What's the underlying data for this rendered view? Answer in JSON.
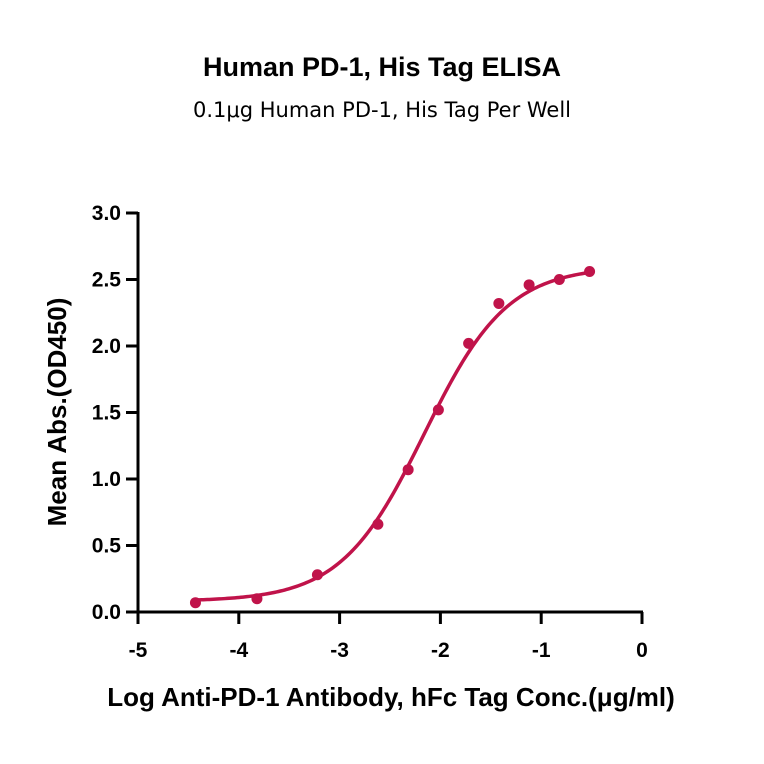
{
  "chart_data": {
    "type": "scatter",
    "title": "Human PD-1, His Tag ELISA",
    "subtitle": "0.1μg Human PD-1, His Tag Per Well",
    "xlabel": "Log Anti-PD-1 Antibody, hFc Tag Conc.(μg/ml)",
    "ylabel": "Mean Abs.(OD450)",
    "xlim": [
      -5,
      0
    ],
    "ylim": [
      0,
      3
    ],
    "x_ticks": [
      "-5",
      "-4",
      "-3",
      "-2",
      "-1",
      "0"
    ],
    "y_ticks": [
      "0.0",
      "0.5",
      "1.0",
      "1.5",
      "2.0",
      "2.5",
      "3.0"
    ],
    "grid": false,
    "color": "#c0134a",
    "series": [
      {
        "x": [
          -4.43,
          -3.82,
          -3.22,
          -2.62,
          -2.32,
          -2.02,
          -1.72,
          -1.42,
          -1.12,
          -0.82,
          -0.52
        ],
        "y": [
          0.07,
          0.1,
          0.28,
          0.66,
          1.07,
          1.52,
          2.02,
          2.32,
          2.46,
          2.5,
          2.56
        ]
      }
    ],
    "fit": {
      "model": "4PL",
      "bottom": 0.08,
      "top": 2.6,
      "log_ec50": -2.16,
      "hill_slope": 1.05,
      "x_range": [
        -4.45,
        -0.52
      ]
    }
  }
}
